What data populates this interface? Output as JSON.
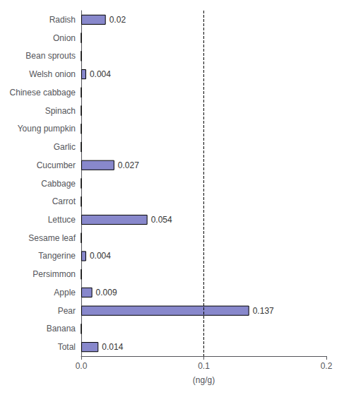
{
  "chart_data": {
    "type": "bar",
    "orientation": "horizontal",
    "categories": [
      "Radish",
      "Onion",
      "Bean sprouts",
      "Welsh onion",
      "Chinese cabbage",
      "Spinach",
      "Young pumpkin",
      "Garlic",
      "Cucumber",
      "Cabbage",
      "Carrot",
      "Lettuce",
      "Sesame leaf",
      "Tangerine",
      "Persimmon",
      "Apple",
      "Pear",
      "Banana",
      "Total"
    ],
    "values": [
      0.02,
      0.0,
      0.0,
      0.004,
      0.0,
      0.0,
      0.0,
      0.0,
      0.027,
      0.0,
      0.0,
      0.054,
      0.0,
      0.004,
      0.0,
      0.009,
      0.137,
      0.0,
      0.014
    ],
    "data_labels": true,
    "value_labels": [
      "0.02",
      null,
      null,
      "0.004",
      null,
      null,
      null,
      null,
      "0.027",
      null,
      null,
      "0.054",
      null,
      "0.004",
      null,
      "0.009",
      "0.137",
      null,
      "0.014"
    ],
    "color": "#8888cc",
    "xlabel": "(ng/g)",
    "xlim": [
      0.0,
      0.2
    ],
    "xticks": [
      {
        "value": 0.0,
        "label": "0.0"
      },
      0.1,
      0.2
    ],
    "vline": {
      "x": 0.1,
      "line_style": "dashed",
      "color": "#000000"
    },
    "grid": false
  }
}
